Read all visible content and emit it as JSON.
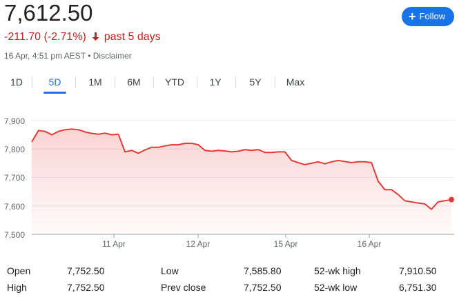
{
  "header": {
    "price": "7,612.50",
    "change": "-211.70 (-2.71%)",
    "period": "past 5 days",
    "timestamp": "16 Apr, 4:51 pm AEST",
    "separator": "•",
    "disclaimer": "Disclaimer",
    "follow_label": "Follow",
    "accent_color": "#1a73e8",
    "negative_color": "#c5221f"
  },
  "tabs": [
    {
      "label": "1D"
    },
    {
      "label": "5D",
      "active": true
    },
    {
      "label": "1M"
    },
    {
      "label": "6M"
    },
    {
      "label": "YTD"
    },
    {
      "label": "1Y"
    },
    {
      "label": "5Y"
    },
    {
      "label": "Max"
    }
  ],
  "chart_data": {
    "type": "area",
    "line_color": "#e53935",
    "ylim": [
      7500,
      7900
    ],
    "y_ticks": [
      "7,900",
      "7,800",
      "7,700",
      "7,600",
      "7,500"
    ],
    "x_ticks": [
      "11 Apr",
      "12 Apr",
      "15 Apr",
      "16 Apr"
    ],
    "grid": true,
    "values": [
      7825,
      7865,
      7862,
      7850,
      7862,
      7868,
      7870,
      7868,
      7860,
      7855,
      7852,
      7856,
      7850,
      7852,
      7790,
      7795,
      7785,
      7797,
      7806,
      7806,
      7811,
      7815,
      7815,
      7820,
      7820,
      7815,
      7795,
      7792,
      7795,
      7793,
      7790,
      7792,
      7798,
      7795,
      7798,
      7788,
      7788,
      7790,
      7790,
      7760,
      7752,
      7745,
      7750,
      7755,
      7748,
      7755,
      7760,
      7756,
      7752,
      7755,
      7755,
      7752,
      7687,
      7657,
      7657,
      7640,
      7618,
      7614,
      7610,
      7607,
      7588,
      7614,
      7618,
      7622
    ]
  },
  "stats": [
    {
      "label": "Open",
      "value": "7,752.50"
    },
    {
      "label": "High",
      "value": "7,752.50"
    },
    {
      "label": "Low",
      "value": "7,585.80"
    },
    {
      "label": "Prev close",
      "value": "7,752.50"
    },
    {
      "label": "52-wk high",
      "value": "7,910.50"
    },
    {
      "label": "52-wk low",
      "value": "6,751.30"
    }
  ]
}
